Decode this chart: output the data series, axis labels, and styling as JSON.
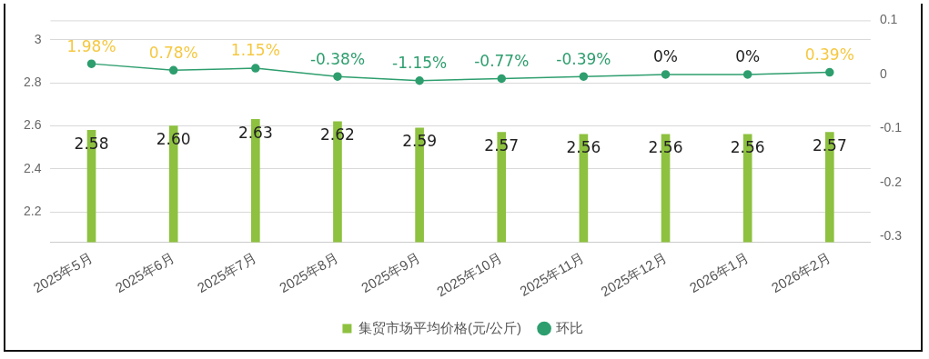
{
  "chart_data": {
    "type": "bar",
    "categories": [
      "2025年5月",
      "2025年6月",
      "2025年7月",
      "2025年8月",
      "2025年9月",
      "2025年10月",
      "2025年11月",
      "2025年12月",
      "2026年1月",
      "2026年2月"
    ],
    "series": [
      {
        "name": "集贸市场平均价格(元/公斤)",
        "color": "#8dc13f",
        "values": [
          2.58,
          2.6,
          2.63,
          2.62,
          2.59,
          2.57,
          2.56,
          2.56,
          2.56,
          2.57
        ],
        "value_labels": [
          "2.58",
          "2.60",
          "2.63",
          "2.62",
          "2.59",
          "2.57",
          "2.56",
          "2.56",
          "2.56",
          "2.57"
        ]
      },
      {
        "name": "环比",
        "type": "line",
        "axis": "y2",
        "color": "#2e9e6e",
        "values": [
          0.0198,
          0.0078,
          0.0115,
          -0.0038,
          -0.0115,
          -0.0077,
          -0.0039,
          0,
          0,
          0.0039
        ],
        "value_labels": [
          "1.98%",
          "0.78%",
          "1.15%",
          "-0.38%",
          "-1.15%",
          "-0.77%",
          "-0.39%",
          "0%",
          "0%",
          "0.39%"
        ]
      }
    ],
    "ylim": [
      2.06,
      3.09
    ],
    "yticks": [
      2.2,
      2.4,
      2.6,
      2.8,
      3
    ],
    "y2lim": [
      -0.31,
      0.1
    ],
    "y2ticks": [
      -0.3,
      -0.2,
      -0.1,
      0,
      0.1
    ],
    "grid": "y",
    "legend": "bottom",
    "marker": "circle",
    "line_style": "solid"
  }
}
